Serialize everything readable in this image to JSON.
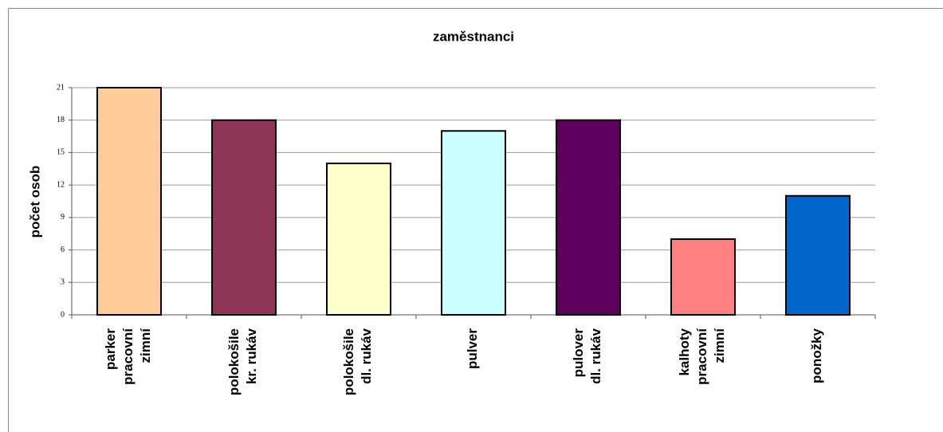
{
  "chart_data": {
    "type": "bar",
    "title": "zaměstnanci",
    "y_label": "počet osob",
    "categories": [
      "parker\npracovní\nzimní",
      "polokošile\nkr. rukáv",
      "polokošile\ndl. rukáv",
      "pulver",
      "pulover\ndl. rukáv",
      "kalhoty\npracovní\nzimní",
      "ponožky"
    ],
    "values": [
      21,
      18,
      14,
      17,
      18,
      7,
      11
    ],
    "colors": [
      "#ffcc99",
      "#8e3558",
      "#ffffcc",
      "#ccffff",
      "#5e005e",
      "#ff8080",
      "#0066cc"
    ],
    "ylim": [
      0,
      21
    ],
    "yticks": [
      0,
      3,
      6,
      9,
      12,
      15,
      18,
      21
    ],
    "grid": true
  }
}
